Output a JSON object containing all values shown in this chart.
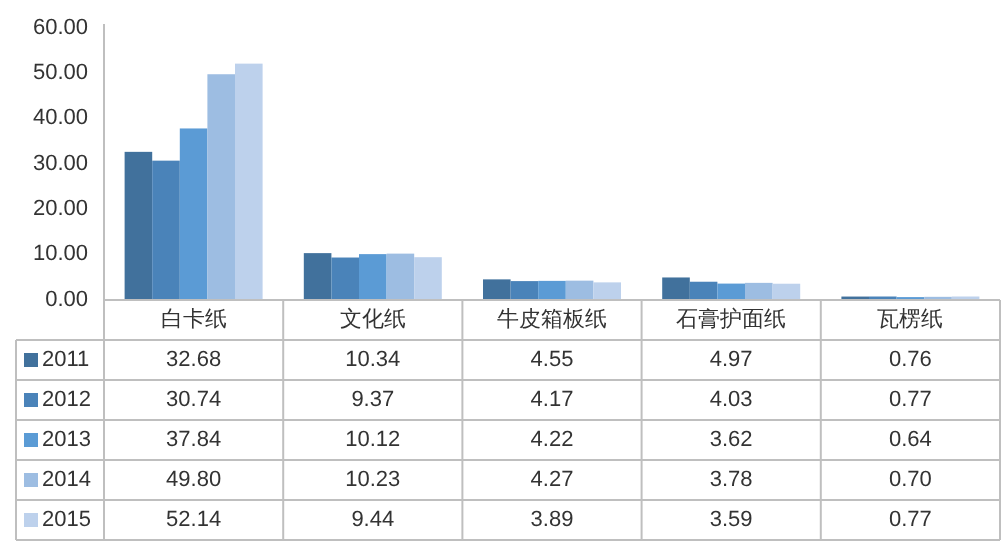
{
  "chart_data": {
    "type": "bar",
    "categories": [
      "白卡纸",
      "文化纸",
      "牛皮箱板纸",
      "石膏护面纸",
      "瓦楞纸"
    ],
    "series": [
      {
        "name": "2011",
        "color": "#41719c",
        "values": [
          32.68,
          10.34,
          4.55,
          4.97,
          0.76
        ],
        "value_labels": [
          "32.68",
          "10.34",
          "4.55",
          "4.97",
          "0.76"
        ]
      },
      {
        "name": "2012",
        "color": "#4a83b9",
        "values": [
          30.74,
          9.37,
          4.17,
          4.03,
          0.77
        ],
        "value_labels": [
          "30.74",
          "9.37",
          "4.17",
          "4.03",
          "0.77"
        ]
      },
      {
        "name": "2013",
        "color": "#5b9bd5",
        "values": [
          37.84,
          10.12,
          4.22,
          3.62,
          0.64
        ],
        "value_labels": [
          "37.84",
          "10.12",
          "4.22",
          "3.62",
          "0.64"
        ]
      },
      {
        "name": "2014",
        "color": "#9dbde2",
        "values": [
          49.8,
          10.23,
          4.27,
          3.78,
          0.7
        ],
        "value_labels": [
          "49.80",
          "10.23",
          "4.27",
          "3.78",
          "0.70"
        ]
      },
      {
        "name": "2015",
        "color": "#bdd1ec",
        "values": [
          52.14,
          9.44,
          3.89,
          3.59,
          0.77
        ],
        "value_labels": [
          "52.14",
          "9.44",
          "3.89",
          "3.59",
          "0.77"
        ]
      }
    ],
    "ylim": [
      0,
      60
    ],
    "yticks": [
      {
        "value": 0,
        "label": "0.00"
      },
      {
        "value": 10,
        "label": "10.00"
      },
      {
        "value": 20,
        "label": "20.00"
      },
      {
        "value": 30,
        "label": "30.00"
      },
      {
        "value": 40,
        "label": "40.00"
      },
      {
        "value": 50,
        "label": "50.00"
      },
      {
        "value": 60,
        "label": "60.00"
      }
    ],
    "legend": "bottom left"
  }
}
